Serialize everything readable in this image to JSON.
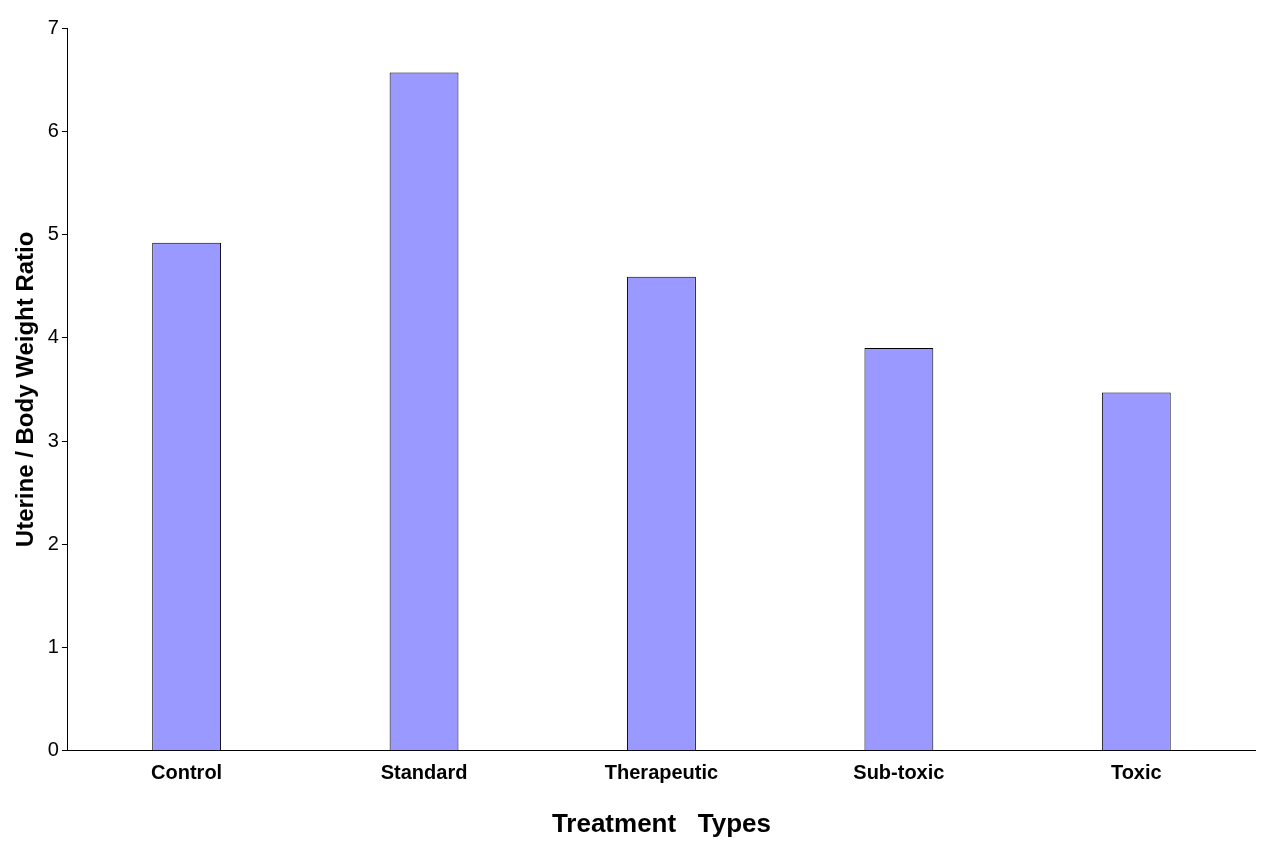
{
  "chart_data": {
    "type": "bar",
    "xlabel": "Treatment   Types",
    "ylabel": "Uterine / Body Weight Ratio",
    "categories": [
      "Control",
      "Standard",
      "Therapeutic",
      "Sub-toxic",
      "Toxic"
    ],
    "values": [
      4.92,
      6.57,
      4.59,
      3.9,
      3.47
    ],
    "color": "#9999ff",
    "ylim": [
      0,
      7
    ],
    "yticks": [
      0,
      1,
      2,
      3,
      4,
      5,
      6,
      7
    ],
    "grid": false,
    "legend": false
  }
}
